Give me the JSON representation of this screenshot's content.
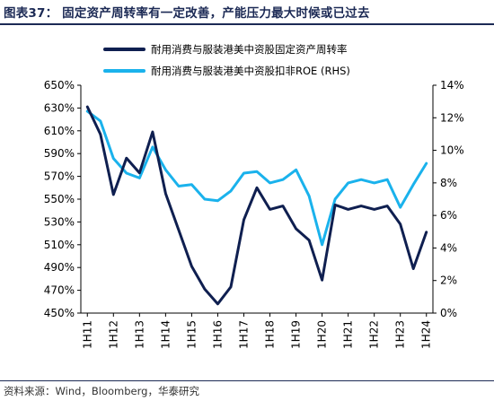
{
  "figure": {
    "title": "图表37： 固定资产周转率有一定改善，产能压力最大时候或已过去",
    "source": "资料来源：Wind，Bloomberg，华泰研究"
  },
  "colors": {
    "series1": "#0f1f50",
    "series2": "#1ab2ec",
    "title": "#1c2a55"
  },
  "chart_data": {
    "type": "line",
    "categories": [
      "1H11",
      "2H11",
      "1H12",
      "2H12",
      "1H13",
      "2H13",
      "1H14",
      "2H14",
      "1H15",
      "2H15",
      "1H16",
      "2H16",
      "1H17",
      "2H17",
      "1H18",
      "2H18",
      "1H19",
      "2H19",
      "1H20",
      "2H20",
      "1H21",
      "2H21",
      "1H22",
      "2H22",
      "1H23",
      "2H23",
      "1H24"
    ],
    "tick_labels": [
      "1H11",
      "1H12",
      "1H13",
      "1H14",
      "1H15",
      "1H16",
      "1H17",
      "1H18",
      "1H19",
      "1H20",
      "1H21",
      "1H22",
      "1H23",
      "1H24"
    ],
    "ylim_left": [
      450,
      650
    ],
    "yticks_left": [
      "450%",
      "470%",
      "490%",
      "510%",
      "530%",
      "550%",
      "570%",
      "590%",
      "610%",
      "630%",
      "650%"
    ],
    "ylim_right": [
      0,
      14
    ],
    "yticks_right": [
      "0%",
      "2%",
      "4%",
      "6%",
      "8%",
      "10%",
      "12%",
      "14%"
    ],
    "legend_position": "top-center",
    "grid": false,
    "series": [
      {
        "name": "耐用消费与服装港美中资股固定资产周转率",
        "axis": "left",
        "values": [
          631,
          607,
          554,
          586,
          573,
          609,
          555,
          523,
          491,
          471,
          458,
          473,
          532,
          560,
          541,
          544,
          524,
          514,
          479,
          545,
          541,
          544,
          541,
          544,
          528,
          489,
          521
        ]
      },
      {
        "name": "耐用消费与服装港美中资股扣非ROE (RHS)",
        "axis": "right",
        "values": [
          12.4,
          11.8,
          9.5,
          8.6,
          8.3,
          10.2,
          8.8,
          7.8,
          7.9,
          7.0,
          6.9,
          7.5,
          8.6,
          8.7,
          8.0,
          8.2,
          8.8,
          7.2,
          4.2,
          7.0,
          8.0,
          8.2,
          8.0,
          8.2,
          6.5,
          7.9,
          9.2
        ]
      }
    ]
  }
}
